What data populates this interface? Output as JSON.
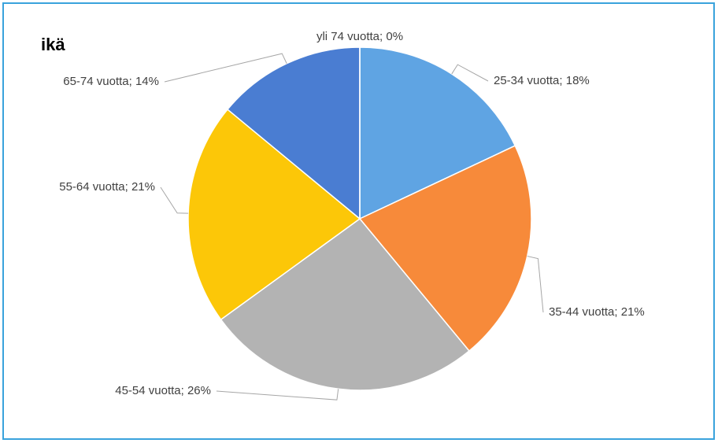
{
  "chart_data": {
    "type": "pie",
    "title": "ikä",
    "categories": [
      "25-34 vuotta; 18%",
      "35-44 vuotta; 21%",
      "45-54 vuotta; 26%",
      "55-64 vuotta; 21%",
      "65-74 vuotta; 14%",
      "yli 74 vuotta; 0%"
    ],
    "values": [
      18,
      21,
      26,
      21,
      14,
      0
    ],
    "colors": [
      "#5fa4e3",
      "#f78a3a",
      "#b3b3b3",
      "#fcc708",
      "#4a7dd2",
      "#3b6fc0"
    ]
  }
}
